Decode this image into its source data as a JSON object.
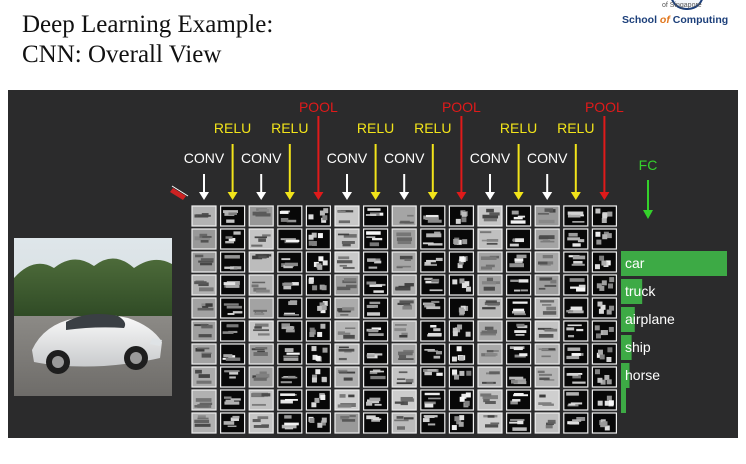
{
  "slide": {
    "title_line1": "Deep Learning Example:",
    "title_line2": "CNN: Overall View"
  },
  "logo": {
    "subtitle": "of Singapore",
    "school_prefix": "School ",
    "school_of": "of",
    "school_suffix": " Computing"
  },
  "layers": [
    {
      "label": "CONV",
      "color": "#ffffff",
      "kind": "conv"
    },
    {
      "label": "RELU",
      "color": "#f2e41a",
      "kind": "relu"
    },
    {
      "label": "CONV",
      "color": "#ffffff",
      "kind": "conv"
    },
    {
      "label": "RELU",
      "color": "#f2e41a",
      "kind": "relu"
    },
    {
      "label": "POOL",
      "color": "#e01a1a",
      "kind": "pool"
    },
    {
      "label": "CONV",
      "color": "#ffffff",
      "kind": "conv"
    },
    {
      "label": "RELU",
      "color": "#f2e41a",
      "kind": "relu"
    },
    {
      "label": "CONV",
      "color": "#ffffff",
      "kind": "conv"
    },
    {
      "label": "RELU",
      "color": "#f2e41a",
      "kind": "relu"
    },
    {
      "label": "POOL",
      "color": "#e01a1a",
      "kind": "pool"
    },
    {
      "label": "CONV",
      "color": "#ffffff",
      "kind": "conv"
    },
    {
      "label": "RELU",
      "color": "#f2e41a",
      "kind": "relu"
    },
    {
      "label": "CONV",
      "color": "#ffffff",
      "kind": "conv"
    },
    {
      "label": "RELU",
      "color": "#f2e41a",
      "kind": "relu"
    },
    {
      "label": "POOL",
      "color": "#e01a1a",
      "kind": "pool"
    }
  ],
  "fc": {
    "label": "FC",
    "color": "#34d12b"
  },
  "predictions": [
    {
      "label": "car",
      "score": 1.0
    },
    {
      "label": "truck",
      "score": 0.2
    },
    {
      "label": "airplane",
      "score": 0.13
    },
    {
      "label": "ship",
      "score": 0.1
    },
    {
      "label": "horse",
      "score": 0.08
    }
  ],
  "bar_color": "#3daa45",
  "icons": {
    "pen": "pen-annotation-icon"
  }
}
